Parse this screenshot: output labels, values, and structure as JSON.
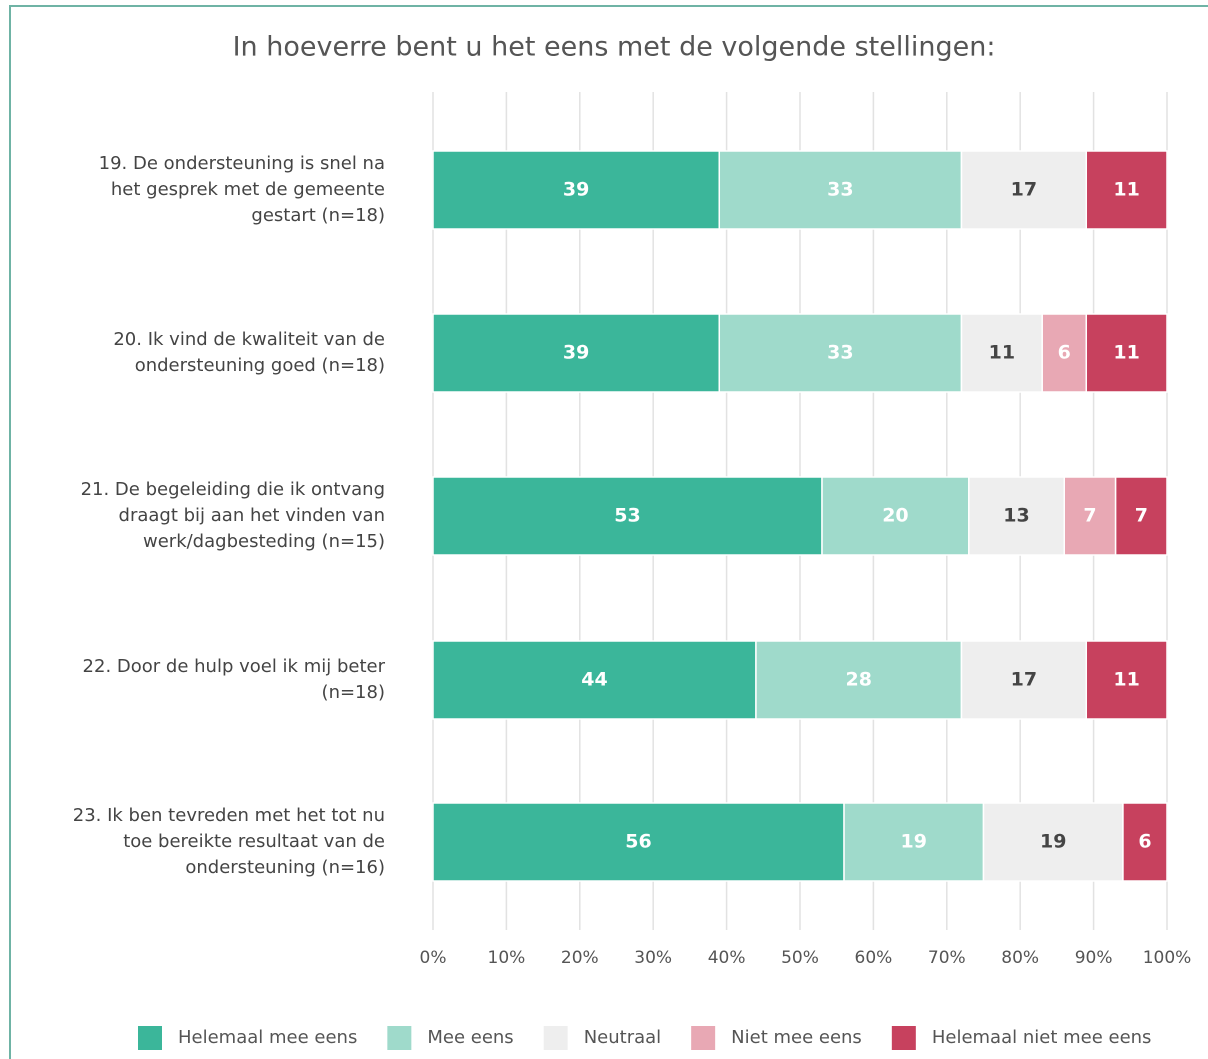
{
  "chart_data": {
    "type": "stacked_bar_horizontal",
    "title": "In hoeverre bent u het eens met de volgende stellingen:",
    "categories": [
      "19. De ondersteuning is snel na\nhet gesprek met de gemeente\ngestart (n=18)",
      "20. Ik vind de kwaliteit van de\nondersteuning goed (n=18)",
      "21. De begeleiding die ik ontvang\ndraagt bij aan het vinden van\nwerk/dagbesteding (n=15)",
      "22. Door de hulp voel ik mij beter\n(n=18)",
      "23. Ik ben tevreden met het tot nu\ntoe bereikte resultaat van de\nondersteuning (n=16)"
    ],
    "series": [
      {
        "name": "Helemaal mee eens",
        "color": "#3bb69a",
        "label_color": "#ffffff",
        "values": [
          39,
          39,
          53,
          44,
          56
        ]
      },
      {
        "name": "Mee eens",
        "color": "#9fdacb",
        "label_color": "#ffffff",
        "values": [
          33,
          33,
          20,
          28,
          19
        ]
      },
      {
        "name": "Neutraal",
        "color": "#eeeeee",
        "label_color": "#444444",
        "values": [
          17,
          11,
          13,
          17,
          19
        ]
      },
      {
        "name": "Niet mee eens",
        "color": "#e8a8b4",
        "label_color": "#ffffff",
        "values": [
          null,
          6,
          7,
          null,
          null
        ]
      },
      {
        "name": "Helemaal niet mee eens",
        "color": "#c7415e",
        "label_color": "#ffffff",
        "values": [
          11,
          11,
          7,
          11,
          6
        ]
      }
    ],
    "xlim": [
      0,
      100
    ],
    "xticks": [
      {
        "value": 0,
        "label": "0%"
      },
      {
        "value": 10,
        "label": "10%"
      },
      {
        "value": 20,
        "label": "20%"
      },
      {
        "value": 30,
        "label": "30%"
      },
      {
        "value": 40,
        "label": "40%"
      },
      {
        "value": 50,
        "label": "50%"
      },
      {
        "value": 60,
        "label": "60%"
      },
      {
        "value": 70,
        "label": "70%"
      },
      {
        "value": 80,
        "label": "80%"
      },
      {
        "value": 90,
        "label": "90%"
      },
      {
        "value": 100,
        "label": "100%"
      }
    ],
    "grid": true,
    "legend": "bottom"
  }
}
